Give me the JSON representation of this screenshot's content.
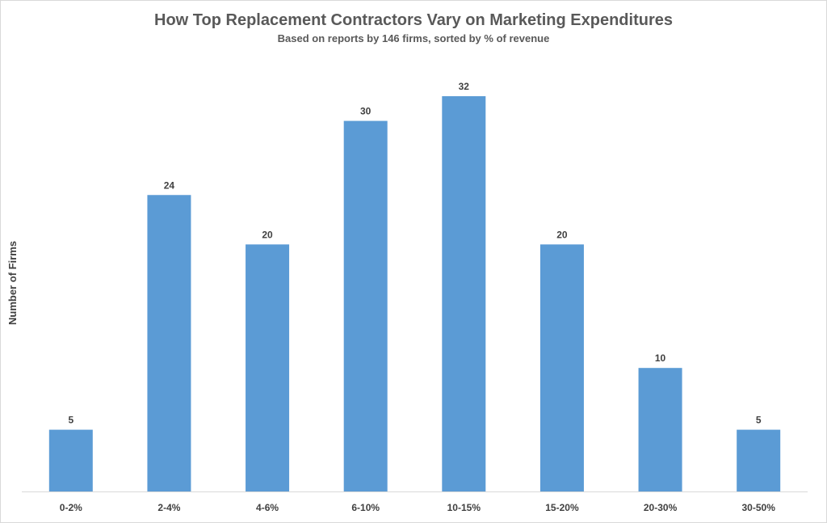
{
  "chart_data": {
    "type": "bar",
    "title": "How Top Replacement Contractors Vary on Marketing Expenditures",
    "subtitle": "Based on reports by 146 firms, sorted by % of revenue",
    "xlabel": "",
    "ylabel": "Number of Firms",
    "categories": [
      "0-2%",
      "2-4%",
      "4-6%",
      "6-10%",
      "10-15%",
      "15-20%",
      "20-30%",
      "30-50%"
    ],
    "values": [
      5,
      24,
      20,
      30,
      32,
      20,
      10,
      5
    ],
    "ylim": [
      0,
      32
    ],
    "grid": false,
    "legend": "none",
    "bar_color": "#5b9bd5"
  }
}
